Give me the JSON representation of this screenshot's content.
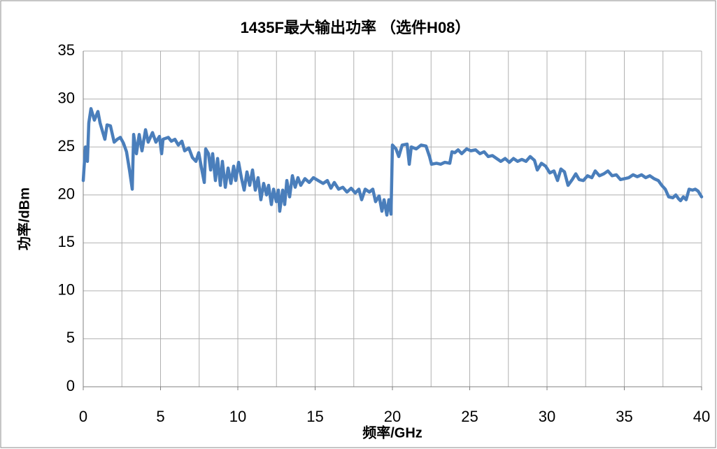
{
  "chart_data": {
    "type": "line",
    "title": "1435F最大输出功率 （选件H08）",
    "xlabel": "频率/GHz",
    "ylabel": "功率/dBm",
    "color": "#4a7ebb",
    "xlim": [
      0,
      40
    ],
    "xticks": [
      0,
      5,
      10,
      15,
      20,
      25,
      30,
      35,
      40
    ],
    "xgrid": [
      0,
      2.5,
      5,
      7.5,
      10,
      12.5,
      15,
      17.5,
      20,
      22.5,
      25,
      27.5,
      30,
      32.5,
      35,
      37.5,
      40
    ],
    "ylim": [
      0,
      35
    ],
    "yticks": [
      0,
      5,
      10,
      15,
      20,
      25,
      30,
      35
    ],
    "grid": true,
    "x": [
      0,
      0.14,
      0.27,
      0.36,
      0.5,
      0.72,
      0.95,
      1.09,
      1.27,
      1.4,
      1.54,
      1.76,
      2.0,
      2.2,
      2.4,
      2.6,
      2.8,
      3.0,
      3.17,
      3.26,
      3.44,
      3.62,
      3.8,
      4.03,
      4.2,
      4.48,
      4.7,
      4.93,
      5.07,
      5.16,
      5.5,
      5.7,
      5.93,
      6.15,
      6.38,
      6.56,
      6.83,
      7.06,
      7.29,
      7.47,
      7.65,
      7.83,
      7.92,
      8.1,
      8.24,
      8.37,
      8.55,
      8.69,
      8.87,
      9.0,
      9.19,
      9.37,
      9.55,
      9.73,
      9.86,
      10.05,
      10.23,
      10.41,
      10.59,
      10.77,
      10.95,
      11.13,
      11.31,
      11.49,
      11.67,
      11.86,
      11.99,
      12.17,
      12.31,
      12.49,
      12.62,
      12.71,
      12.9,
      13.03,
      13.17,
      13.35,
      13.53,
      13.71,
      13.89,
      14.07,
      14.34,
      14.62,
      14.89,
      15.2,
      15.52,
      15.79,
      16.02,
      16.24,
      16.52,
      16.79,
      17.06,
      17.33,
      17.6,
      17.83,
      18.01,
      18.24,
      18.51,
      18.73,
      18.91,
      19.14,
      19.32,
      19.46,
      19.64,
      19.77,
      19.91,
      20.0,
      20.23,
      20.41,
      20.63,
      20.95,
      21.09,
      21.22,
      21.54,
      21.86,
      22.17,
      22.4,
      22.53,
      22.85,
      23.12,
      23.39,
      23.71,
      23.85,
      24.03,
      24.25,
      24.48,
      24.8,
      25.07,
      25.38,
      25.66,
      25.93,
      26.2,
      26.47,
      26.74,
      27.01,
      27.29,
      27.56,
      27.83,
      28.1,
      28.37,
      28.64,
      28.91,
      29.19,
      29.37,
      29.64,
      29.91,
      30.18,
      30.45,
      30.68,
      30.9,
      31.13,
      31.36,
      31.63,
      31.86,
      32.08,
      32.35,
      32.62,
      32.9,
      33.12,
      33.39,
      33.67,
      33.94,
      34.21,
      34.48,
      34.75,
      35.02,
      35.29,
      35.57,
      35.84,
      36.11,
      36.38,
      36.65,
      36.92,
      37.2,
      37.42,
      37.65,
      37.87,
      38.14,
      38.33,
      38.51,
      38.64,
      38.82,
      39.0,
      39.19,
      39.41,
      39.59,
      39.77,
      40.0
    ],
    "values": [
      21.5,
      25,
      23.5,
      27.5,
      29,
      27.8,
      28.7,
      27.5,
      26.5,
      25.8,
      27.3,
      27.2,
      25.5,
      25.8,
      26,
      25.4,
      24.5,
      22.5,
      20.6,
      26.3,
      24.3,
      26.3,
      24.6,
      26.8,
      25.5,
      26.5,
      25.5,
      26.1,
      24.3,
      25.8,
      26,
      25.6,
      25.8,
      25.2,
      25.6,
      24.6,
      24.9,
      23.9,
      23.5,
      24.4,
      22.8,
      21.3,
      24.8,
      24.3,
      22.6,
      24.3,
      21.5,
      23.8,
      21,
      23.5,
      20.8,
      22.8,
      21.2,
      23,
      21.5,
      23.4,
      21.8,
      20.5,
      22.4,
      21,
      22.6,
      20.5,
      21.8,
      19.5,
      21.2,
      20,
      21,
      19,
      20.6,
      19.3,
      20.5,
      18.3,
      20.5,
      19,
      21.5,
      19.8,
      22,
      20.8,
      21.8,
      21,
      21.7,
      21.3,
      21.8,
      21.5,
      21.2,
      21.5,
      20.7,
      21.3,
      20.6,
      20.8,
      20.3,
      20.7,
      20.2,
      20.6,
      19.5,
      20.6,
      20.3,
      20.6,
      19.3,
      19.9,
      18.3,
      19.5,
      17.9,
      19.5,
      18,
      25.2,
      24.8,
      24,
      25.2,
      25.3,
      23.2,
      25,
      24.8,
      25.2,
      25.1,
      24,
      23.2,
      23.3,
      23.2,
      23.4,
      23.3,
      24.5,
      24.4,
      24.7,
      24.3,
      24.8,
      24.6,
      24.7,
      24.3,
      24.5,
      24,
      24.1,
      23.8,
      23.5,
      23.8,
      23.4,
      23.8,
      23.5,
      23.7,
      23.5,
      24,
      23.6,
      22.6,
      23.3,
      23,
      22.3,
      22.5,
      21.5,
      22.7,
      22.4,
      21,
      21.6,
      22.2,
      21.6,
      21.5,
      22,
      21.8,
      22.5,
      22,
      22.2,
      22.5,
      22,
      22.1,
      21.6,
      21.7,
      21.8,
      22.1,
      21.9,
      22.1,
      21.8,
      22,
      21.7,
      21.5,
      21,
      20.6,
      19.8,
      19.7,
      20,
      19.6,
      19.4,
      19.8,
      19.5,
      20.6,
      20.5,
      20.6,
      20.4,
      19.8
    ]
  }
}
